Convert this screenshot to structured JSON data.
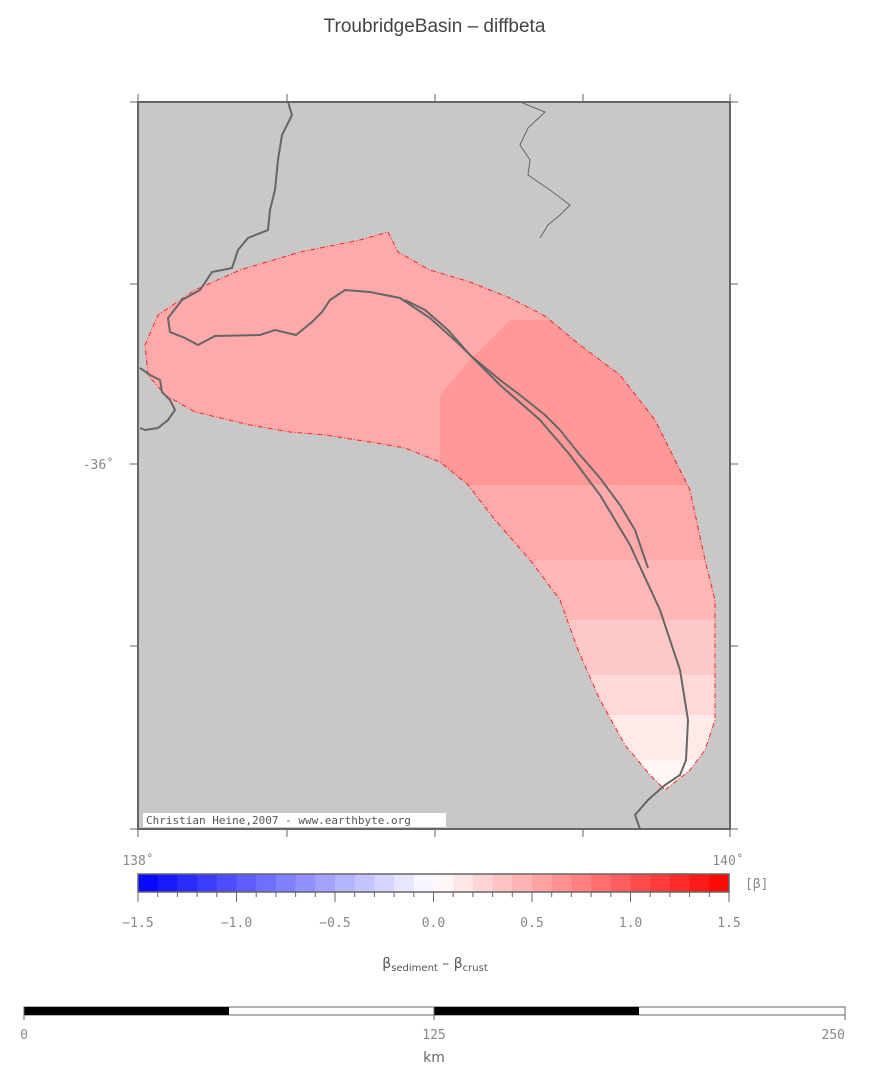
{
  "title": "TroubridgeBasin – diffbeta",
  "map": {
    "credit": "Christian Heine,2007 - www.earthbyte.org",
    "lat_label": "-36˚",
    "lon_labels": [
      "138˚",
      "140˚"
    ],
    "lon_range": [
      138,
      140
    ],
    "background_color": "#c8c8c8",
    "outline_color": "#ff0000",
    "coast_color": "#666666"
  },
  "colorbar": {
    "unit": "[β]",
    "ticks": [
      "−1.5",
      "−1.0",
      "−0.5",
      "0.0",
      "0.5",
      "1.0",
      "1.5"
    ],
    "range": [
      -1.5,
      1.5
    ],
    "steps": 30,
    "label_main": "β",
    "label_sub1": "sediment",
    "label_mid": " – β",
    "label_sub2": "crust"
  },
  "scalebar": {
    "ticks": [
      "0",
      "125",
      "250"
    ],
    "unit": "km",
    "range_km": [
      0,
      250
    ]
  }
}
